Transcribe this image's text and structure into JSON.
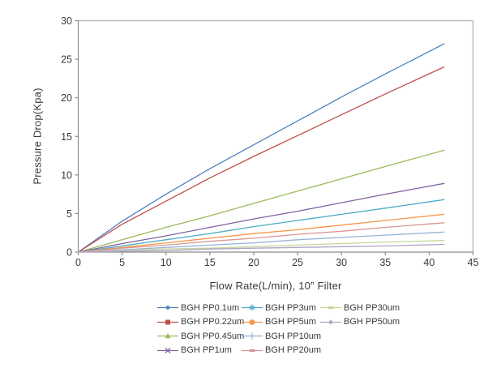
{
  "chart_data": {
    "type": "line",
    "title": "",
    "xlabel": "Flow Rate(L/min), 10” Filter",
    "ylabel": "Pressure Drop(Kpa)",
    "xlim": [
      0,
      45
    ],
    "ylim": [
      0,
      30
    ],
    "x_ticks": [
      0,
      5,
      10,
      15,
      20,
      25,
      30,
      35,
      40,
      45
    ],
    "y_ticks": [
      0,
      5,
      10,
      15,
      20,
      25,
      30
    ],
    "grid": false,
    "legend_position": "bottom",
    "x": [
      0,
      5,
      10,
      15,
      20,
      25,
      30,
      35,
      41.7
    ],
    "series": [
      {
        "name": "BGH PP0.1um",
        "color": "#4F81BD",
        "marker": "diamond",
        "values": [
          0,
          4.0,
          7.5,
          10.8,
          13.9,
          17.0,
          20.1,
          23.1,
          27.0
        ]
      },
      {
        "name": "BGH PP0.22um",
        "color": "#C0504D",
        "marker": "square",
        "values": [
          0,
          3.6,
          6.6,
          9.6,
          12.4,
          15.1,
          17.8,
          20.5,
          24.0
        ]
      },
      {
        "name": "BGH PP0.45um",
        "color": "#9BBB59",
        "marker": "triangle",
        "values": [
          0,
          1.6,
          3.2,
          4.7,
          6.3,
          7.9,
          9.5,
          11.1,
          13.2
        ]
      },
      {
        "name": "BGH PP1um",
        "color": "#8064A2",
        "marker": "x",
        "values": [
          0,
          1.1,
          2.1,
          3.2,
          4.3,
          5.3,
          6.4,
          7.5,
          8.9
        ]
      },
      {
        "name": "BGH PP3um",
        "color": "#4BACC6",
        "marker": "asterisk",
        "values": [
          0,
          0.8,
          1.6,
          2.4,
          3.3,
          4.1,
          4.9,
          5.7,
          6.8
        ]
      },
      {
        "name": "BGH PP5um",
        "color": "#F79646",
        "marker": "circle",
        "values": [
          0,
          0.6,
          1.2,
          1.8,
          2.4,
          2.9,
          3.5,
          4.1,
          4.9
        ]
      },
      {
        "name": "BGH PP10um",
        "color": "#95B3D7",
        "marker": "plus",
        "values": [
          0,
          0.3,
          0.6,
          0.9,
          1.2,
          1.6,
          1.9,
          2.2,
          2.6
        ]
      },
      {
        "name": "BGH PP20um",
        "color": "#D99694",
        "marker": "dash",
        "values": [
          0,
          0.5,
          0.9,
          1.4,
          1.8,
          2.3,
          2.7,
          3.2,
          3.8
        ]
      },
      {
        "name": "BGH PP30um",
        "color": "#C3D69B",
        "marker": "dash",
        "values": [
          0,
          0.2,
          0.4,
          0.5,
          0.7,
          0.9,
          1.1,
          1.3,
          1.5
        ]
      },
      {
        "name": "BGH PP50um",
        "color": "#B2A2C7",
        "marker": "diamond",
        "values": [
          0,
          0.1,
          0.2,
          0.4,
          0.5,
          0.6,
          0.7,
          0.8,
          1.0
        ]
      }
    ],
    "legend_columns": [
      [
        0,
        1,
        2,
        3
      ],
      [
        4,
        5,
        6,
        7
      ],
      [
        8,
        9
      ]
    ]
  },
  "style": {
    "axis_color": "#8C8C8C",
    "plot_border_color": "#B8B8B8",
    "tick_label_color": "#3A3A3A"
  }
}
